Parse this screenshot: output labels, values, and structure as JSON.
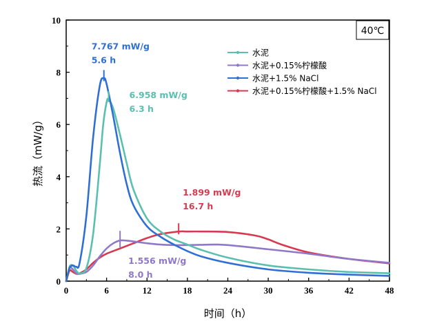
{
  "chart_data": {
    "type": "line",
    "xlabel": "时间（h）",
    "ylabel": "热流（mW/g）",
    "xlim": [
      0,
      48
    ],
    "ylim": [
      0,
      10
    ],
    "xticks": [
      "0",
      "6",
      "12",
      "18",
      "24",
      "30",
      "36",
      "42",
      "48"
    ],
    "yticks": [
      "0",
      "2",
      "4",
      "6",
      "8",
      "10"
    ],
    "temperature_label": "40℃",
    "legend_position": "top-right",
    "series": [
      {
        "name": "水泥",
        "color": "#5bbfb0",
        "x": [
          0,
          0.5,
          1,
          1.5,
          2,
          3,
          4,
          5,
          5.5,
          6,
          6.3,
          7,
          8,
          9,
          10,
          12,
          14,
          16,
          18,
          20,
          24,
          30,
          36,
          42,
          48
        ],
        "y": [
          0,
          0.55,
          0.6,
          0.4,
          0.3,
          0.5,
          1.8,
          4.5,
          6.0,
          6.85,
          6.958,
          6.6,
          5.6,
          4.5,
          3.5,
          2.4,
          1.9,
          1.6,
          1.4,
          1.2,
          0.9,
          0.6,
          0.45,
          0.35,
          0.3
        ]
      },
      {
        "name": "水泥+0.15%柠檬酸",
        "color": "#8f78c8",
        "x": [
          0,
          0.5,
          1,
          1.5,
          2,
          3,
          4,
          5,
          6,
          7,
          8,
          9,
          10,
          12,
          14,
          16,
          18,
          20,
          22,
          24,
          30,
          36,
          42,
          48
        ],
        "y": [
          0,
          0.5,
          0.45,
          0.3,
          0.28,
          0.35,
          0.6,
          0.95,
          1.25,
          1.45,
          1.556,
          1.55,
          1.52,
          1.45,
          1.4,
          1.38,
          1.38,
          1.39,
          1.4,
          1.38,
          1.22,
          1.05,
          0.85,
          0.7
        ]
      },
      {
        "name": "水泥+1.5% NaCl",
        "color": "#2f6fd4",
        "x": [
          0,
          0.5,
          1,
          1.5,
          2,
          3,
          4,
          5,
          5.6,
          6,
          7,
          8,
          9,
          10,
          12,
          14,
          16,
          18,
          20,
          24,
          30,
          36,
          42,
          48
        ],
        "y": [
          0,
          0.5,
          0.6,
          0.55,
          0.7,
          2.5,
          5.5,
          7.5,
          7.767,
          7.55,
          6.3,
          4.9,
          3.7,
          2.9,
          2.1,
          1.7,
          1.4,
          1.15,
          0.95,
          0.7,
          0.45,
          0.32,
          0.25,
          0.2
        ]
      },
      {
        "name": "水泥+0.15%柠檬酸+1.5% NaCl",
        "color": "#d63a50",
        "x": [
          0,
          0.5,
          1,
          1.5,
          2,
          3,
          4,
          5,
          6,
          8,
          10,
          12,
          14,
          16.7,
          18,
          20,
          24,
          28,
          30,
          32,
          36,
          42,
          48
        ],
        "y": [
          0,
          0.4,
          0.35,
          0.28,
          0.3,
          0.45,
          0.7,
          0.9,
          1.05,
          1.25,
          1.45,
          1.65,
          1.8,
          1.899,
          1.9,
          1.9,
          1.88,
          1.75,
          1.6,
          1.4,
          1.1,
          0.85,
          0.68
        ]
      }
    ],
    "annotations": [
      {
        "series": 2,
        "x": 5.6,
        "y": 7.767,
        "value_label": "7.767 mW/g",
        "time_label": "5.6 h",
        "color": "#2f6fd4"
      },
      {
        "series": 0,
        "x": 6.3,
        "y": 6.958,
        "value_label": "6.958 mW/g",
        "time_label": "6.3 h",
        "color": "#5bbfb0"
      },
      {
        "series": 3,
        "x": 16.7,
        "y": 1.899,
        "value_label": "1.899 mW/g",
        "time_label": "16.7 h",
        "color": "#d63a50"
      },
      {
        "series": 1,
        "x": 8.0,
        "y": 1.556,
        "value_label": "1.556 mW/g",
        "time_label": "8.0 h",
        "color": "#8f78c8"
      }
    ]
  }
}
